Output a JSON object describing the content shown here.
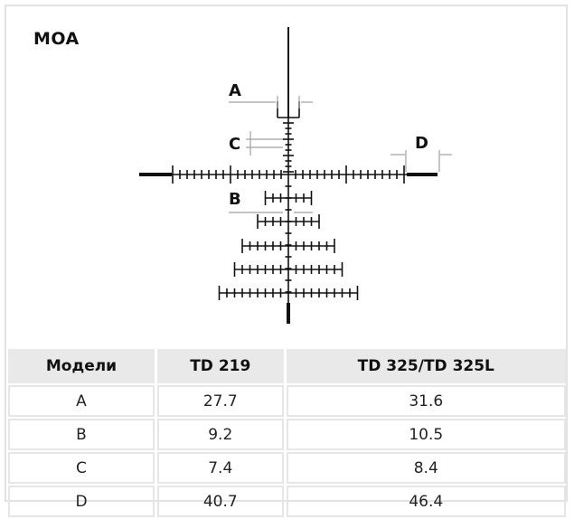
{
  "unit_label": "MOA",
  "diagram": {
    "dimension_labels": [
      "A",
      "B",
      "C",
      "D"
    ]
  },
  "table": {
    "headers": [
      "Модели",
      "TD 219",
      "TD 325/TD 325L"
    ],
    "rows": [
      [
        "A",
        "27.7",
        "31.6"
      ],
      [
        "B",
        "9.2",
        "10.5"
      ],
      [
        "C",
        "7.4",
        "8.4"
      ],
      [
        "D",
        "40.7",
        "46.4"
      ]
    ]
  },
  "colors": {
    "reticle": "#111111",
    "dimension_lines": "#a0a0a0",
    "header_bg": "#e9e9e9",
    "border": "#e2e2e2"
  }
}
